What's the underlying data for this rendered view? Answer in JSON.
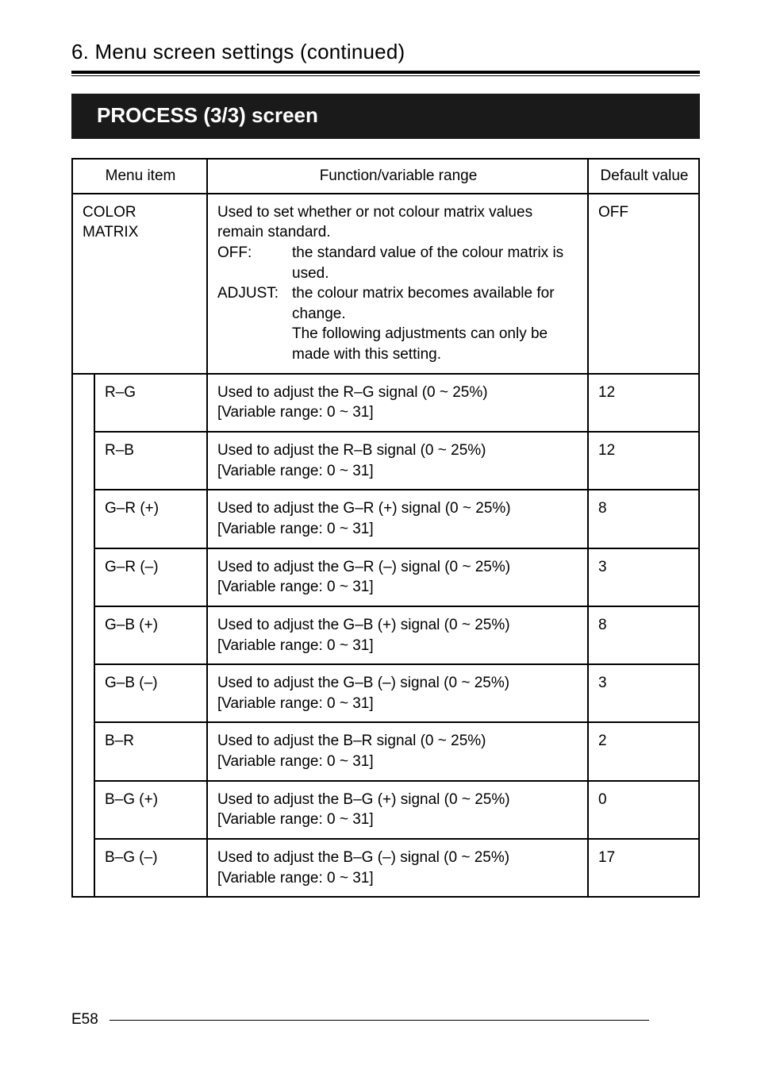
{
  "heading": "6. Menu screen settings (continued)",
  "banner": "PROCESS (3/3) screen",
  "columns": {
    "menu_item": "Menu item",
    "function": "Function/variable range",
    "default": "Default value"
  },
  "color_matrix": {
    "label1": "COLOR",
    "label2": "MATRIX",
    "desc_intro": "Used to set whether or not colour matrix values remain standard.",
    "off_label": "OFF:",
    "off_text": "the standard value of the colour matrix is used.",
    "adjust_label": "ADJUST:",
    "adjust_text1": "the colour matrix becomes available for change.",
    "adjust_text2": "The following adjustments can only be made with this setting.",
    "default": "OFF"
  },
  "rows": [
    {
      "name": "R–G",
      "desc": "Used to adjust the R–G signal (0 ~ 25%)",
      "range": "[Variable range: 0 ~ 31]",
      "default": "12"
    },
    {
      "name": "R–B",
      "desc": "Used to adjust the R–B signal (0 ~ 25%)",
      "range": "[Variable range: 0 ~ 31]",
      "default": "12"
    },
    {
      "name": "G–R (+)",
      "desc": "Used to adjust the G–R (+) signal (0 ~ 25%)",
      "range": "[Variable range: 0 ~ 31]",
      "default": "8"
    },
    {
      "name": "G–R (–)",
      "desc": "Used to adjust the G–R (–) signal (0 ~ 25%)",
      "range": "[Variable range: 0 ~ 31]",
      "default": "3"
    },
    {
      "name": "G–B (+)",
      "desc": "Used to adjust the G–B (+) signal (0 ~ 25%)",
      "range": "[Variable range: 0 ~ 31]",
      "default": "8"
    },
    {
      "name": "G–B (–)",
      "desc": "Used to adjust the G–B (–) signal (0 ~ 25%)",
      "range": "[Variable range: 0 ~ 31]",
      "default": "3"
    },
    {
      "name": "B–R",
      "desc": "Used to adjust the B–R signal (0 ~ 25%)",
      "range": "[Variable range: 0 ~ 31]",
      "default": "2"
    },
    {
      "name": "B–G (+)",
      "desc": "Used to adjust the B–G (+) signal (0 ~ 25%)",
      "range": "[Variable range: 0 ~ 31]",
      "default": "0"
    },
    {
      "name": "B–G (–)",
      "desc": "Used to adjust the B–G (–) signal (0 ~ 25%)",
      "range": "[Variable range: 0 ~ 31]",
      "default": "17"
    }
  ],
  "page_number": "E58"
}
